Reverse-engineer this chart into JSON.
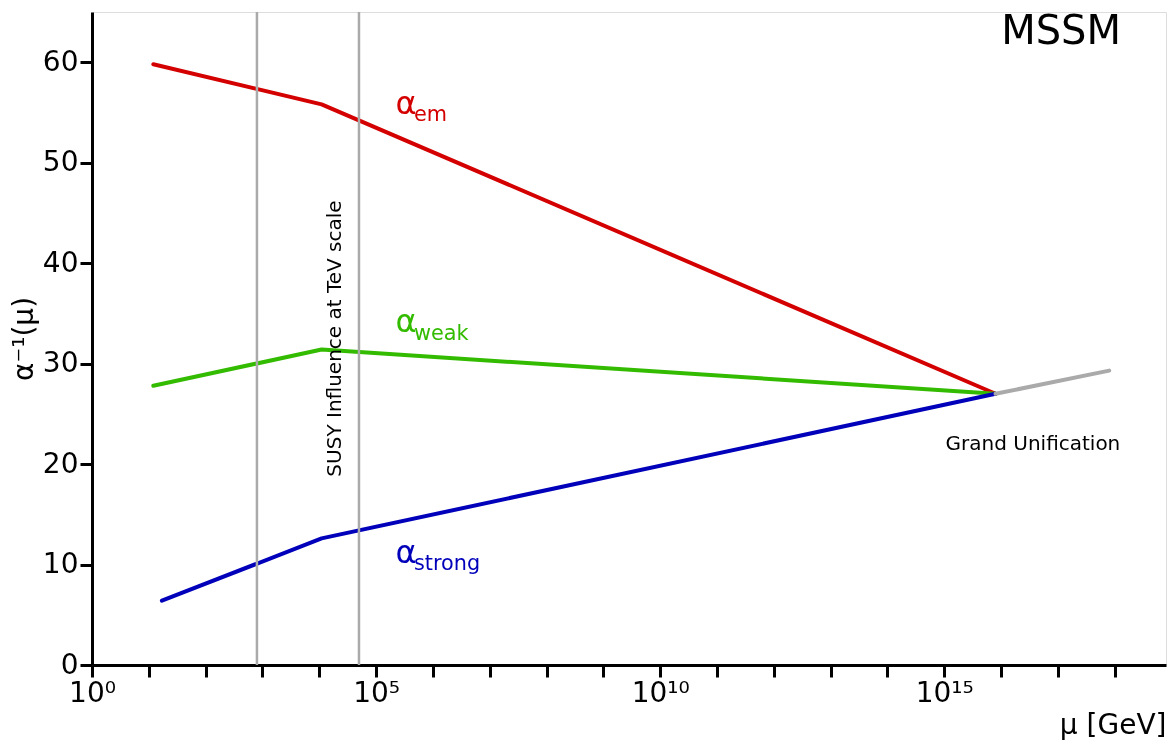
{
  "chart_data": {
    "type": "line",
    "xlabel": "μ [GeV]",
    "ylabel": "α⁻¹(μ)",
    "log": "x",
    "xlim": [
      1,
      8e+18
    ],
    "ylim": [
      0,
      65
    ],
    "xticks": [
      {
        "value": 1,
        "label": "10⁰"
      },
      {
        "value": 10.0,
        "label": null
      },
      {
        "value": 100.0,
        "label": null
      },
      {
        "value": 1000.0,
        "label": null
      },
      {
        "value": 10000.0,
        "label": null
      },
      {
        "value": 100000.0,
        "label": "10⁵"
      },
      {
        "value": 1000000.0,
        "label": null
      },
      {
        "value": 10000000.0,
        "label": null
      },
      {
        "value": 100000000.0,
        "label": null
      },
      {
        "value": 1000000000.0,
        "label": null
      },
      {
        "value": 10000000000.0,
        "label": "10¹⁰"
      },
      {
        "value": 100000000000.0,
        "label": null
      },
      {
        "value": 1000000000000.0,
        "label": null
      },
      {
        "value": 10000000000000.0,
        "label": null
      },
      {
        "value": 100000000000000.0,
        "label": null
      },
      {
        "value": 1000000000000000.0,
        "label": "10¹⁵"
      },
      {
        "value": 1e+16,
        "label": null
      },
      {
        "value": 1e+17,
        "label": null
      },
      {
        "value": 1e+18,
        "label": null
      }
    ],
    "yticks": [
      0,
      10,
      20,
      30,
      40,
      50,
      60
    ],
    "grid": false,
    "legend": false,
    "marker": "none",
    "series": [
      {
        "name": "α$_{em}$",
        "color": "#d40000",
        "x": [
          12,
          11000.0,
          8000000000000000.0
        ],
        "values": [
          59.8,
          55.8,
          27.0
        ]
      },
      {
        "name": "α$_{weak}$",
        "color": "#33bb00",
        "x": [
          12,
          11000.0,
          8000000000000000.0
        ],
        "values": [
          27.8,
          31.4,
          27.0
        ]
      },
      {
        "name": "α$_{strong}$",
        "color": "#0000bb",
        "x": [
          17,
          11000.0,
          8000000000000000.0
        ],
        "values": [
          6.4,
          12.6,
          27.0
        ]
      },
      {
        "color": "#aaaaaa",
        "x": [
          8000000000000000.0,
          8e+17
        ],
        "values": [
          27.0,
          29.3
        ]
      }
    ],
    "ref_lines": [
      {
        "axis": "x",
        "value": 800,
        "color": "#aaaaaa"
      },
      {
        "axis": "x",
        "value": 50000.0,
        "color": "#aaaaaa",
        "label": "SUSY Influence at TeV scale"
      }
    ],
    "annotations": [
      "MSSM",
      "Grand Unification"
    ]
  }
}
